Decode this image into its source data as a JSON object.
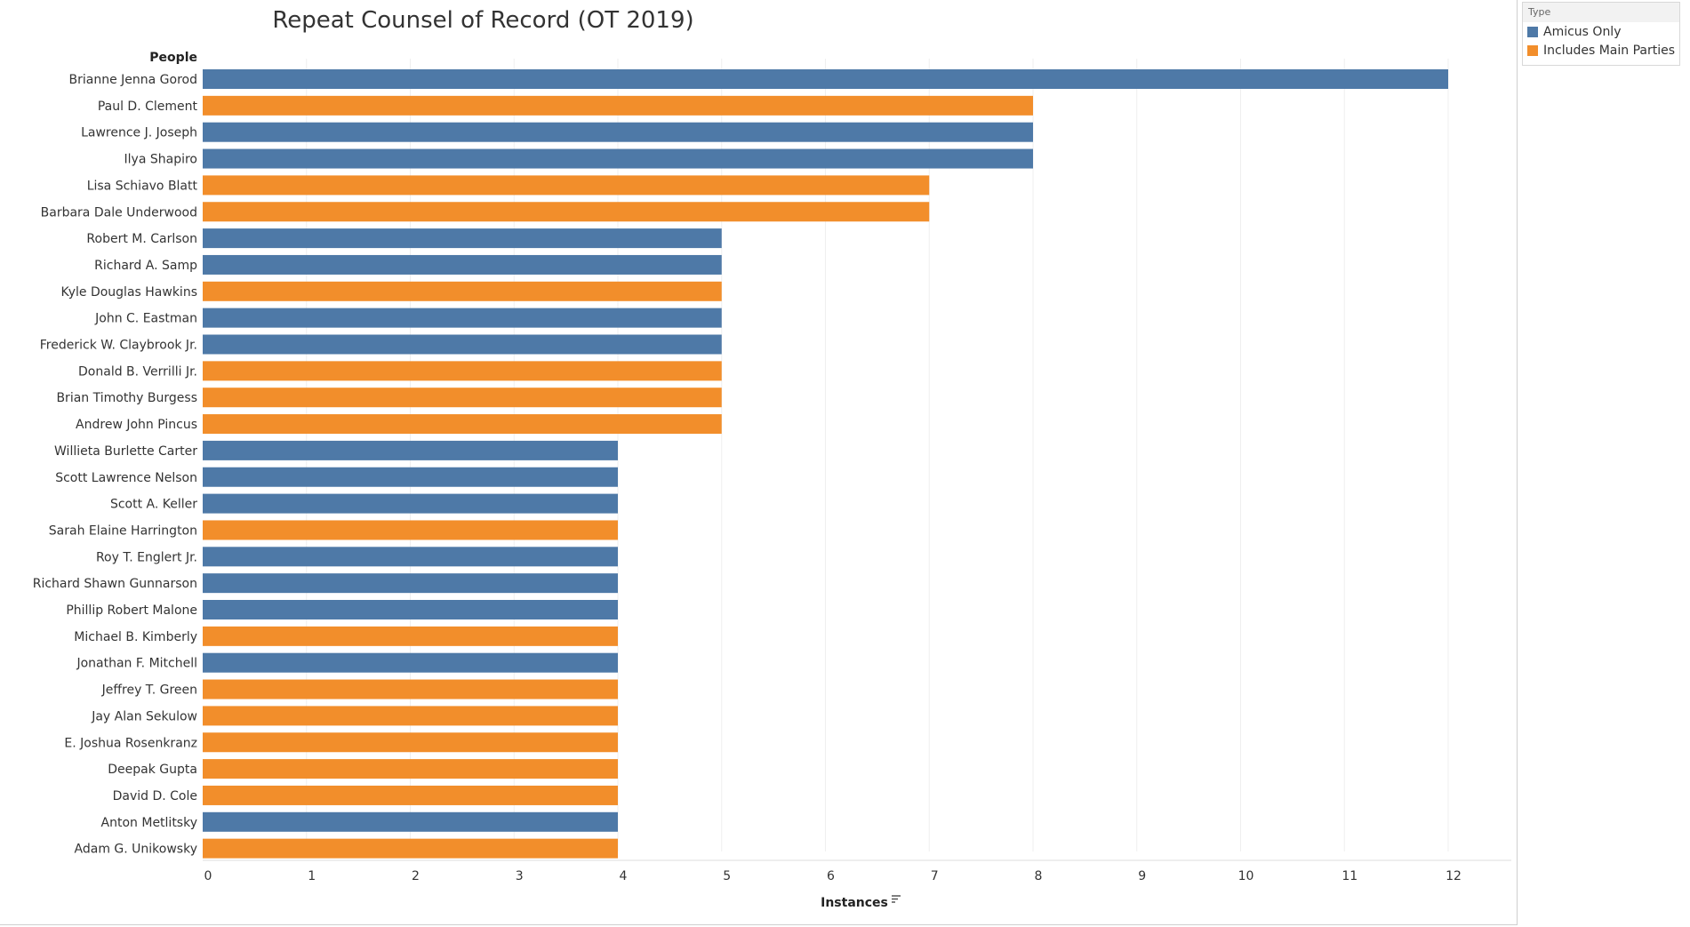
{
  "title": "Repeat Counsel of Record (OT 2019)",
  "legend": {
    "title": "Type",
    "items": [
      {
        "label": "Amicus Only",
        "color": "#4e79a7"
      },
      {
        "label": "Includes Main Parties",
        "color": "#f28e2b"
      }
    ]
  },
  "chart_data": {
    "type": "bar",
    "orientation": "horizontal",
    "title": "Repeat Counsel of Record (OT 2019)",
    "ylabel": "People",
    "xlabel": "Instances",
    "xlim": [
      0,
      12
    ],
    "xticks": [
      0,
      1,
      2,
      3,
      4,
      5,
      6,
      7,
      8,
      9,
      10,
      11,
      12
    ],
    "grid": "vertical",
    "legend_position": "top-right",
    "colors": {
      "Amicus Only": "#4e79a7",
      "Includes Main Parties": "#f28e2b"
    },
    "bars": [
      {
        "name": "Brianne Jenna Gorod",
        "value": 12,
        "type": "Amicus Only"
      },
      {
        "name": "Paul D. Clement",
        "value": 8,
        "type": "Includes Main Parties"
      },
      {
        "name": "Lawrence J. Joseph",
        "value": 8,
        "type": "Amicus Only"
      },
      {
        "name": "Ilya Shapiro",
        "value": 8,
        "type": "Amicus Only"
      },
      {
        "name": "Lisa Schiavo Blatt",
        "value": 7,
        "type": "Includes Main Parties"
      },
      {
        "name": "Barbara Dale Underwood",
        "value": 7,
        "type": "Includes Main Parties"
      },
      {
        "name": "Robert M. Carlson",
        "value": 5,
        "type": "Amicus Only"
      },
      {
        "name": "Richard A. Samp",
        "value": 5,
        "type": "Amicus Only"
      },
      {
        "name": "Kyle Douglas Hawkins",
        "value": 5,
        "type": "Includes Main Parties"
      },
      {
        "name": "John C. Eastman",
        "value": 5,
        "type": "Amicus Only"
      },
      {
        "name": "Frederick W. Claybrook Jr.",
        "value": 5,
        "type": "Amicus Only"
      },
      {
        "name": "Donald B. Verrilli Jr.",
        "value": 5,
        "type": "Includes Main Parties"
      },
      {
        "name": "Brian Timothy Burgess",
        "value": 5,
        "type": "Includes Main Parties"
      },
      {
        "name": "Andrew John Pincus",
        "value": 5,
        "type": "Includes Main Parties"
      },
      {
        "name": "Willieta Burlette Carter",
        "value": 4,
        "type": "Amicus Only"
      },
      {
        "name": "Scott Lawrence Nelson",
        "value": 4,
        "type": "Amicus Only"
      },
      {
        "name": "Scott A. Keller",
        "value": 4,
        "type": "Amicus Only"
      },
      {
        "name": "Sarah Elaine Harrington",
        "value": 4,
        "type": "Includes Main Parties"
      },
      {
        "name": "Roy T. Englert Jr.",
        "value": 4,
        "type": "Amicus Only"
      },
      {
        "name": "Richard Shawn Gunnarson",
        "value": 4,
        "type": "Amicus Only"
      },
      {
        "name": "Phillip Robert Malone",
        "value": 4,
        "type": "Amicus Only"
      },
      {
        "name": "Michael B. Kimberly",
        "value": 4,
        "type": "Includes Main Parties"
      },
      {
        "name": "Jonathan F. Mitchell",
        "value": 4,
        "type": "Amicus Only"
      },
      {
        "name": "Jeffrey T. Green",
        "value": 4,
        "type": "Includes Main Parties"
      },
      {
        "name": "Jay Alan Sekulow",
        "value": 4,
        "type": "Includes Main Parties"
      },
      {
        "name": "E. Joshua Rosenkranz",
        "value": 4,
        "type": "Includes Main Parties"
      },
      {
        "name": "Deepak Gupta",
        "value": 4,
        "type": "Includes Main Parties"
      },
      {
        "name": "David D. Cole",
        "value": 4,
        "type": "Includes Main Parties"
      },
      {
        "name": "Anton Metlitsky",
        "value": 4,
        "type": "Amicus Only"
      },
      {
        "name": "Adam G. Unikowsky",
        "value": 4,
        "type": "Includes Main Parties"
      }
    ]
  }
}
